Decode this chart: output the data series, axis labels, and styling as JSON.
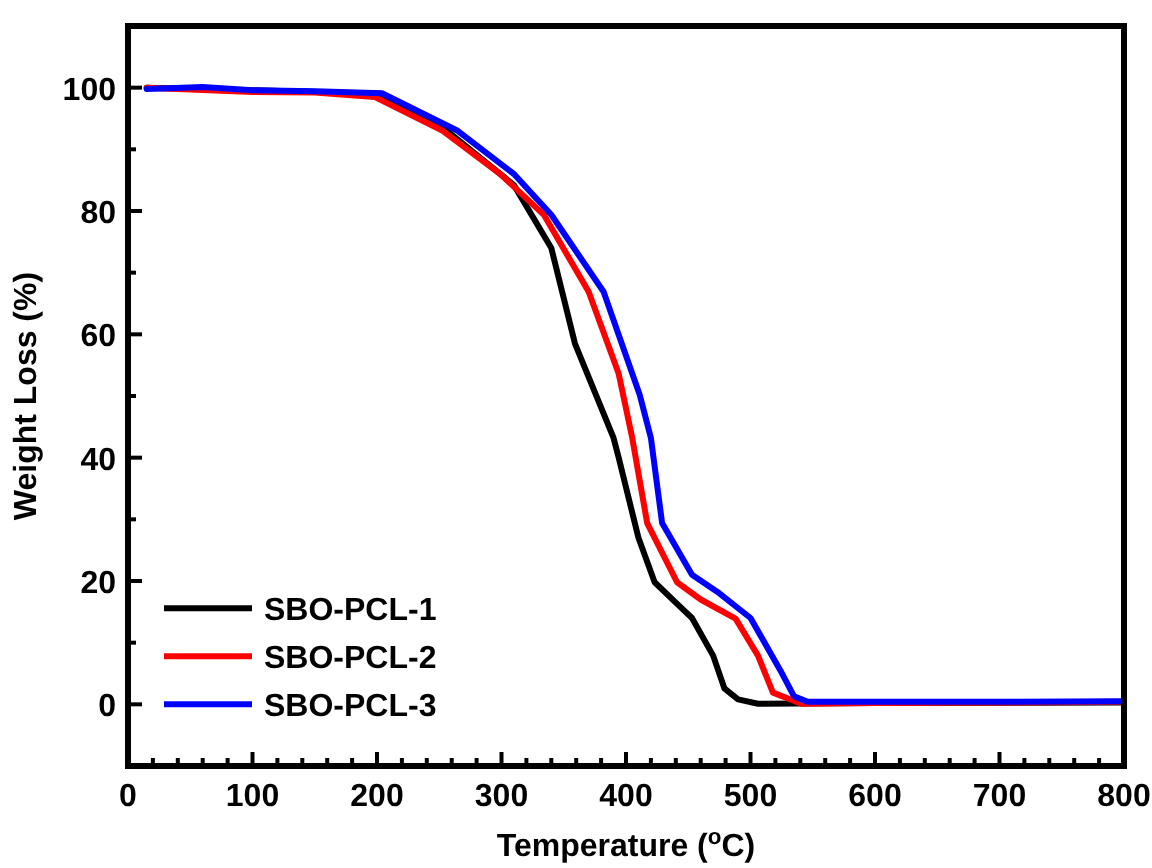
{
  "chart_data": {
    "type": "line",
    "xlabel": "Temperature ($^{o}$C)",
    "ylabel": "Weight Loss (%)",
    "xlim": [
      0,
      800
    ],
    "ylim": [
      -10,
      110
    ],
    "xticks": [
      0,
      {
        "value": 20,
        "label": null
      },
      {
        "value": 40,
        "label": null
      },
      {
        "value": 60,
        "label": null
      },
      {
        "value": 80,
        "label": null
      },
      100,
      {
        "value": 120,
        "label": null
      },
      {
        "value": 140,
        "label": null
      },
      {
        "value": 160,
        "label": null
      },
      {
        "value": 180,
        "label": null
      },
      200,
      {
        "value": 220,
        "label": null
      },
      {
        "value": 240,
        "label": null
      },
      {
        "value": 260,
        "label": null
      },
      {
        "value": 280,
        "label": null
      },
      300,
      {
        "value": 320,
        "label": null
      },
      {
        "value": 340,
        "label": null
      },
      {
        "value": 360,
        "label": null
      },
      {
        "value": 380,
        "label": null
      },
      400,
      {
        "value": 420,
        "label": null
      },
      {
        "value": 440,
        "label": null
      },
      {
        "value": 460,
        "label": null
      },
      {
        "value": 480,
        "label": null
      },
      500,
      {
        "value": 520,
        "label": null
      },
      {
        "value": 540,
        "label": null
      },
      {
        "value": 560,
        "label": null
      },
      {
        "value": 580,
        "label": null
      },
      600,
      {
        "value": 620,
        "label": null
      },
      {
        "value": 640,
        "label": null
      },
      {
        "value": 660,
        "label": null
      },
      {
        "value": 680,
        "label": null
      },
      700,
      {
        "value": 720,
        "label": null
      },
      {
        "value": 740,
        "label": null
      },
      {
        "value": 760,
        "label": null
      },
      {
        "value": 780,
        "label": null
      },
      800
    ],
    "yticks": [
      {
        "value": -10,
        "label": null
      },
      0,
      {
        "value": 10,
        "label": null
      },
      20,
      {
        "value": 30,
        "label": null
      },
      40,
      {
        "value": 50,
        "label": null
      },
      60,
      {
        "value": 70,
        "label": null
      },
      80,
      {
        "value": 90,
        "label": null
      },
      100,
      {
        "value": 110,
        "label": null
      }
    ],
    "legend": "bottom left",
    "marker": "none",
    "line_style": "solid",
    "grid": false,
    "series": [
      {
        "name": "SBO-PCL-1",
        "color": "#000000",
        "x": [
          15,
          60,
          203,
          250,
          310,
          340,
          359,
          390,
          394,
          410,
          423,
          440,
          453,
          470,
          479,
          490,
          506,
          600,
          800
        ],
        "values": [
          100,
          99.8,
          99,
          94,
          84.2,
          74,
          58.5,
          43.2,
          40.1,
          27,
          19.8,
          16.5,
          14,
          7.9,
          2.6,
          0.8,
          0.1,
          0.2,
          0.3
        ]
      },
      {
        "name": "SBO-PCL-2",
        "color": "#ff0000",
        "x": [
          15,
          100,
          150,
          198,
          252,
          299,
          334,
          370,
          394,
          405,
          417,
          441,
          460,
          488,
          506,
          518,
          541,
          600,
          700,
          800
        ],
        "values": [
          100,
          99.3,
          99.2,
          98.5,
          93.1,
          86,
          79.4,
          66.9,
          53.7,
          43.2,
          29.4,
          19.8,
          17,
          13.9,
          7.9,
          1.9,
          0.1,
          0.2,
          0.3,
          0.4
        ]
      },
      {
        "name": "SBO-PCL-3",
        "color": "#0000ff",
        "x": [
          15,
          60,
          100,
          150,
          204,
          264,
          310,
          340,
          382,
          411,
          420,
          429,
          453,
          475,
          500,
          524,
          535,
          546,
          600,
          700,
          800
        ],
        "values": [
          99.8,
          100.1,
          99.6,
          99.4,
          99.1,
          93.1,
          86,
          79.4,
          66.9,
          50.2,
          43.2,
          29.4,
          21,
          18,
          14,
          5.5,
          1.3,
          0.4,
          0.4,
          0.4,
          0.5
        ]
      }
    ]
  }
}
